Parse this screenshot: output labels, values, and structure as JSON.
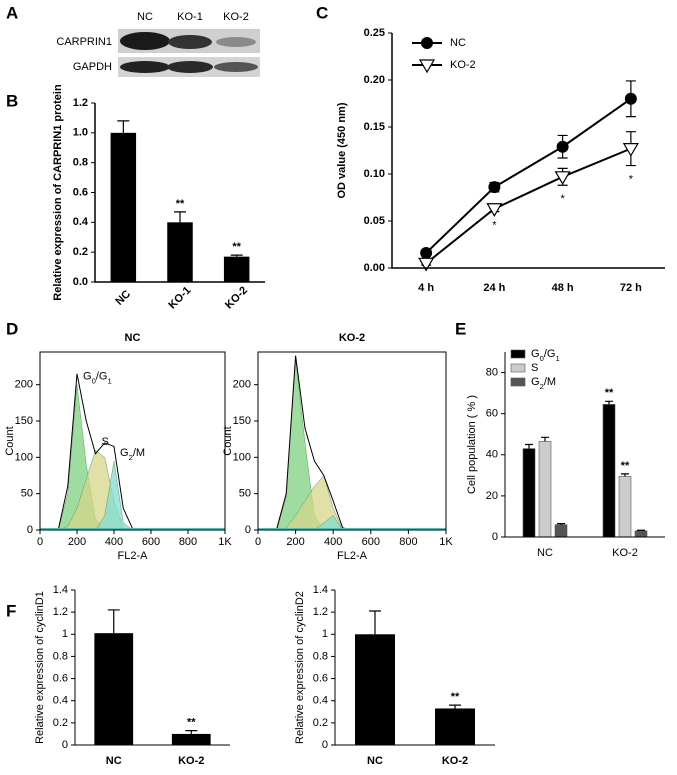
{
  "panels": [
    "A",
    "B",
    "C",
    "D",
    "E",
    "F"
  ],
  "blot": {
    "lanes": [
      "NC",
      "KO-1",
      "KO-2"
    ],
    "rows": [
      "CARPRIN1",
      "GAPDH"
    ]
  },
  "chart_data": [
    {
      "type": "bar",
      "ylabel": "Relative expression of CARPRIN1 protein",
      "categories": [
        "NC",
        "KO-1",
        "KO-2"
      ],
      "values": [
        1.0,
        0.4,
        0.17
      ],
      "errors": [
        0.08,
        0.07,
        0.01
      ],
      "annotations": [
        null,
        "**",
        "**"
      ],
      "color": "#000000",
      "ylim": [
        0,
        1.2
      ],
      "yticks": [
        {
          "value": 0,
          "label": "0.0"
        },
        {
          "value": 0.2,
          "label": "0.2"
        },
        {
          "value": 0.4,
          "label": "0.4"
        },
        {
          "value": 0.6,
          "label": "0.6"
        },
        {
          "value": 0.8,
          "label": "0.8"
        },
        {
          "value": 1,
          "label": "1.0"
        },
        {
          "value": 1.2,
          "label": "1.2"
        }
      ]
    },
    {
      "type": "line",
      "ylabel": "OD value (450 nm)",
      "categories": [
        "4 h",
        "24 h",
        "48 h",
        "72 h"
      ],
      "series": [
        {
          "name": "NC",
          "color": "#000000",
          "marker": "circle",
          "values": [
            0.016,
            0.086,
            0.129,
            0.18
          ],
          "errors": [
            0.003,
            0.005,
            0.012,
            0.019
          ]
        },
        {
          "name": "KO-2",
          "color": "#000000",
          "marker": "triangle-down",
          "values": [
            0.005,
            0.063,
            0.097,
            0.127
          ],
          "errors": [
            0.002,
            0.003,
            0.009,
            0.018
          ],
          "annotations": [
            null,
            "*",
            "*",
            "*"
          ]
        }
      ],
      "ylim": [
        0,
        0.25
      ],
      "yticks": [
        {
          "value": 0,
          "label": "0.00"
        },
        0.05,
        {
          "value": 0.1,
          "label": "0.10"
        },
        0.15,
        {
          "value": 0.2,
          "label": "0.20"
        },
        0.25
      ],
      "legend": "upper-left"
    },
    {
      "type": "area",
      "title": "NC",
      "xlabel": "FL2-A",
      "ylabel": "Count",
      "x": [
        0,
        50,
        100,
        150,
        200,
        250,
        300,
        350,
        400,
        450,
        500,
        550,
        600,
        650,
        700,
        750,
        800,
        850,
        900,
        950,
        1000
      ],
      "series": [
        {
          "name": "G0/G1",
          "color": "#7fd07f",
          "values": [
            0,
            0,
            0,
            50,
            200,
            90,
            15,
            0,
            0,
            0,
            0,
            0,
            0,
            0,
            0,
            0,
            0,
            0,
            0,
            0,
            0
          ]
        },
        {
          "name": "S",
          "color": "#d6d68a",
          "values": [
            0,
            0,
            0,
            5,
            30,
            70,
            110,
            100,
            40,
            3,
            0,
            0,
            0,
            0,
            0,
            0,
            0,
            0,
            0,
            0,
            0
          ]
        },
        {
          "name": "G2/M",
          "color": "#80dcd4",
          "values": [
            0,
            0,
            0,
            0,
            0,
            0,
            0,
            20,
            95,
            10,
            0,
            0,
            0,
            0,
            0,
            0,
            0,
            0,
            0,
            0,
            0
          ]
        },
        {
          "color": "#000000",
          "values": [
            0,
            0,
            2,
            60,
            215,
            150,
            105,
            120,
            115,
            30,
            2,
            0,
            0,
            0,
            0,
            0,
            0,
            0,
            0,
            0,
            0
          ]
        }
      ],
      "xlim": [
        0,
        1000
      ],
      "xticks": [
        0,
        200,
        400,
        600,
        800,
        {
          "value": 1000,
          "label": "1K"
        }
      ],
      "ylim": [
        0,
        245
      ],
      "yticks": [
        0,
        50,
        100,
        150,
        200
      ]
    },
    {
      "type": "area",
      "title": "KO-2",
      "xlabel": "FL2-A",
      "ylabel": "Count",
      "x": [
        0,
        50,
        100,
        150,
        200,
        250,
        300,
        350,
        400,
        450,
        500,
        550,
        600,
        650,
        700,
        750,
        800,
        850,
        900,
        950,
        1000
      ],
      "series": [
        {
          "color": "#7fd07f",
          "values": [
            0,
            0,
            0,
            45,
            235,
            120,
            20,
            0,
            0,
            0,
            0,
            0,
            0,
            0,
            0,
            0,
            0,
            0,
            0,
            0,
            0
          ]
        },
        {
          "color": "#d6d68a",
          "values": [
            0,
            0,
            0,
            3,
            20,
            40,
            60,
            75,
            30,
            0,
            0,
            0,
            0,
            0,
            0,
            0,
            0,
            0,
            0,
            0,
            0
          ]
        },
        {
          "color": "#80dcd4",
          "values": [
            0,
            0,
            0,
            0,
            0,
            0,
            0,
            10,
            20,
            0,
            0,
            0,
            0,
            0,
            0,
            0,
            0,
            0,
            0,
            0,
            0
          ]
        },
        {
          "color": "#000000",
          "values": [
            0,
            0,
            2,
            50,
            240,
            140,
            95,
            75,
            40,
            3,
            0,
            0,
            0,
            0,
            0,
            0,
            0,
            0,
            0,
            0,
            0
          ]
        }
      ],
      "xlim": [
        0,
        1000
      ],
      "xticks": [
        0,
        200,
        400,
        600,
        800,
        {
          "value": 1000,
          "label": "1K"
        }
      ],
      "ylim": [
        0,
        245
      ],
      "yticks": [
        0,
        50,
        100,
        150,
        200
      ]
    },
    {
      "type": "bar",
      "ylabel": "Cell population ( % )",
      "categories": [
        "NC",
        "KO-2"
      ],
      "series": [
        {
          "name": "G0/G1",
          "color": "#000000",
          "values": [
            43,
            64.5
          ],
          "errors": [
            2,
            1.5
          ],
          "annotations": [
            null,
            "**"
          ]
        },
        {
          "name": "S",
          "color": "#cccccc",
          "values": [
            46.5,
            29.5
          ],
          "errors": [
            2,
            1.2
          ],
          "annotations": [
            null,
            "**"
          ]
        },
        {
          "name": "G2/M",
          "color": "#555555",
          "values": [
            6,
            3
          ],
          "errors": [
            0.5,
            0.3
          ]
        }
      ],
      "ylim": [
        0,
        90
      ],
      "yticks": [
        0,
        20,
        40,
        60,
        80
      ],
      "legend": "upper-left"
    },
    {
      "type": "bar",
      "ylabel": "Relative expression of cyclinD1",
      "categories": [
        "NC",
        "KO-2"
      ],
      "values": [
        1.01,
        0.1
      ],
      "errors": [
        0.21,
        0.03
      ],
      "annotations": [
        null,
        "**"
      ],
      "color": "#000000",
      "ylim": [
        0,
        1.4
      ],
      "yticks": [
        0,
        0.2,
        0.4,
        0.6,
        0.8,
        1,
        1.2,
        1.4
      ]
    },
    {
      "type": "bar",
      "ylabel": "Relative expression of cyclinD2",
      "categories": [
        "NC",
        "KO-2"
      ],
      "values": [
        1.0,
        0.33
      ],
      "errors": [
        0.21,
        0.03
      ],
      "annotations": [
        null,
        "**"
      ],
      "color": "#000000",
      "ylim": [
        0,
        1.4
      ],
      "yticks": [
        0,
        0.2,
        0.4,
        0.6,
        0.8,
        1,
        1.2,
        1.4
      ]
    }
  ]
}
